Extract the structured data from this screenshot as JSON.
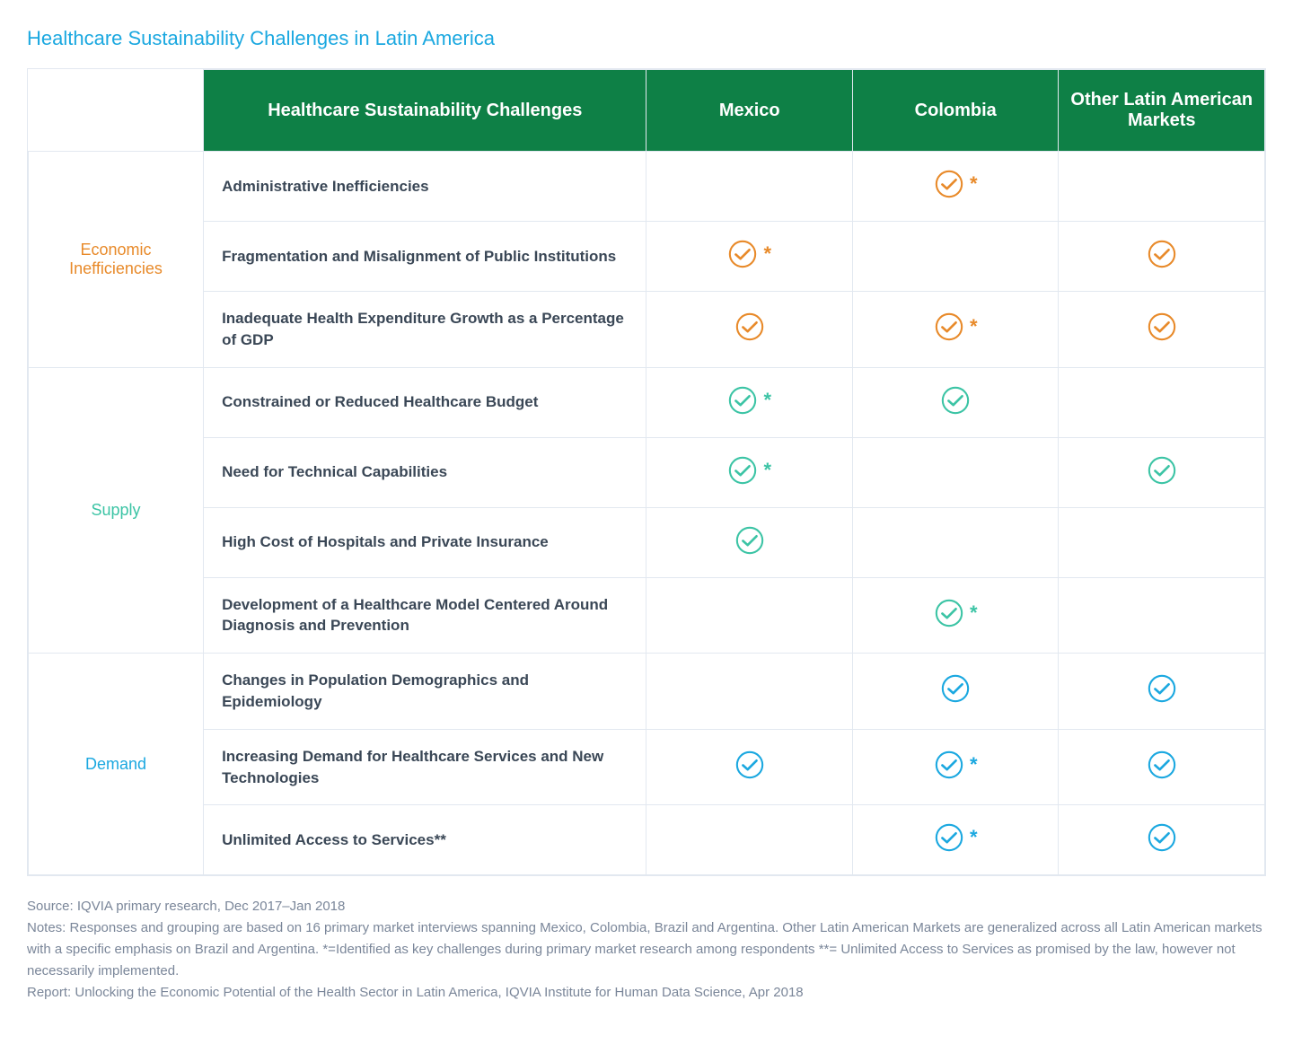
{
  "title": "Healthcare Sustainability Challenges in Latin America",
  "colors": {
    "title": "#1ba8e0",
    "header_bg": "#0e8046",
    "header_text": "#ffffff",
    "cell_border": "#e2e8f0",
    "text": "#3a4756",
    "footer_text": "#7a8699"
  },
  "columns": {
    "challenge": "Healthcare Sustainability Challenges",
    "mexico": "Mexico",
    "colombia": "Colombia",
    "other": "Other Latin American Markets"
  },
  "col_widths": {
    "category": 170,
    "challenge": 430,
    "country": 200
  },
  "categories": [
    {
      "key": "economic",
      "label": "Economic Inefficiencies",
      "color": "#e88a2a",
      "rows": [
        {
          "label": "Administrative Inefficiencies",
          "mexico": null,
          "colombia": {
            "star": true
          },
          "other": null
        },
        {
          "label": "Fragmentation and Misalignment of Public Institutions",
          "mexico": {
            "star": true
          },
          "colombia": null,
          "other": {
            "star": false
          }
        },
        {
          "label": "Inadequate Health Expenditure Growth as a Percentage  of GDP",
          "mexico": {
            "star": false
          },
          "colombia": {
            "star": true
          },
          "other": {
            "star": false
          }
        }
      ]
    },
    {
      "key": "supply",
      "label": "Supply",
      "color": "#3cc4a5",
      "rows": [
        {
          "label": "Constrained or Reduced Healthcare Budget",
          "mexico": {
            "star": true
          },
          "colombia": {
            "star": false
          },
          "other": null
        },
        {
          "label": "Need for Technical Capabilities",
          "mexico": {
            "star": true
          },
          "colombia": null,
          "other": {
            "star": false
          }
        },
        {
          "label": "High Cost of Hospitals and Private Insurance",
          "mexico": {
            "star": false
          },
          "colombia": null,
          "other": null
        },
        {
          "label": "Development of a Healthcare Model Centered Around Diagnosis and Prevention",
          "mexico": null,
          "colombia": {
            "star": true
          },
          "other": null
        }
      ]
    },
    {
      "key": "demand",
      "label": "Demand",
      "color": "#1ba8e0",
      "rows": [
        {
          "label": "Changes in Population Demographics and Epidemiology",
          "mexico": null,
          "colombia": {
            "star": false
          },
          "other": {
            "star": false
          }
        },
        {
          "label": "Increasing Demand for Healthcare Services and New Technologies",
          "mexico": {
            "star": false
          },
          "colombia": {
            "star": true
          },
          "other": {
            "star": false
          }
        },
        {
          "label": "Unlimited Access to Services**",
          "mexico": null,
          "colombia": {
            "star": true
          },
          "other": {
            "star": false
          }
        }
      ]
    }
  ],
  "footer": {
    "source": "Source: IQVIA primary research, Dec 2017–Jan 2018",
    "notes": "Notes: Responses and grouping are based on 16 primary market interviews spanning Mexico, Colombia, Brazil and Argentina. Other Latin American Markets are generalized across all Latin American markets with a specific emphasis on Brazil and Argentina. *=Identified as key challenges during primary market research among respondents **= Unlimited Access to Services as promised by the law, however not necessarily implemented.",
    "report": "Report: Unlocking the Economic Potential of the Health Sector in Latin America, IQVIA Institute for Human Data Science, Apr 2018"
  }
}
